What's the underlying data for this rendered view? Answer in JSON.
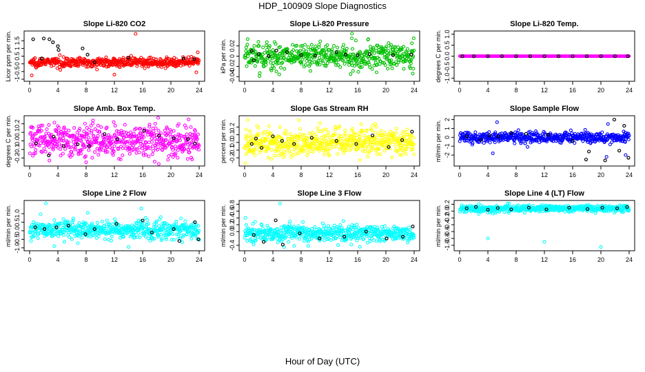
{
  "title": "HDP_100909  Slope Diagnostics",
  "xlabel": "Hour of Day (UTC)",
  "chart_data": [
    {
      "type": "scatter",
      "title": "Slope Li-820 CO2",
      "ylabel": "Licor ppm per min.",
      "xlim": [
        0,
        24
      ],
      "xticks": [
        0,
        4,
        8,
        12,
        16,
        20,
        24
      ],
      "ylim": [
        -1,
        2
      ],
      "yticks": [
        -1,
        -0.5,
        0,
        0.5,
        1,
        1.5
      ],
      "ytick_labels": [
        "-1",
        "-0.5",
        "0",
        "0.5",
        "1",
        "1.5"
      ],
      "color": "#ff0000",
      "n_points": 540,
      "center": 0.1,
      "spread": 0.14,
      "outliers": [
        [
          15,
          1.95
        ],
        [
          0.3,
          -0.75
        ],
        [
          23.8,
          0.75
        ],
        [
          23.6,
          -0.55
        ],
        [
          12,
          -0.7
        ]
      ],
      "black_points": [
        [
          0.5,
          1.6
        ],
        [
          2,
          1.65
        ],
        [
          2.8,
          1.6
        ],
        [
          3.3,
          1.4
        ],
        [
          4,
          1.15
        ],
        [
          7.5,
          1.0
        ],
        [
          8.2,
          0.6
        ],
        [
          1.7,
          0.35
        ],
        [
          4.1,
          0.9
        ],
        [
          9.2,
          0.1
        ],
        [
          14,
          0.4
        ],
        [
          21.8,
          0.35
        ],
        [
          23.3,
          0.3
        ]
      ]
    },
    {
      "type": "scatter",
      "title": "Slope Li-820 Pressure",
      "ylabel": "kPa per min.",
      "xlim": [
        0,
        24
      ],
      "xticks": [
        0,
        4,
        8,
        12,
        16,
        20,
        24
      ],
      "ylim": [
        -0.045,
        0.045
      ],
      "yticks": [
        -0.04,
        -0.02,
        0,
        0.02
      ],
      "ytick_labels": [
        "-0.04",
        "-0.02",
        "0",
        "0.02"
      ],
      "color": "#00c000",
      "n_points": 540,
      "center": 0,
      "spread": 0.013,
      "outliers": [
        [
          15.2,
          0.044
        ],
        [
          17.5,
          0.033
        ],
        [
          15,
          -0.035
        ],
        [
          23.8,
          -0.034
        ],
        [
          4.5,
          -0.03
        ]
      ],
      "black_points": [
        [
          1,
          0.01
        ],
        [
          1.3,
          -0.008
        ],
        [
          2,
          0.004
        ],
        [
          3.4,
          0
        ],
        [
          4.5,
          0.011
        ],
        [
          6,
          0.008
        ],
        [
          8,
          0.002
        ],
        [
          10,
          0.001
        ],
        [
          13,
          0.008
        ],
        [
          14.3,
          0.003
        ],
        [
          16,
          0.002
        ],
        [
          17.7,
          0.004
        ],
        [
          21,
          0.002
        ],
        [
          23.6,
          0.003
        ]
      ]
    },
    {
      "type": "scatter",
      "title": "Slope Li-820 Temp.",
      "ylabel": "degrees C per min.",
      "xlim": [
        0,
        24
      ],
      "xticks": [
        0,
        4,
        8,
        12,
        16,
        20,
        24
      ],
      "ylim": [
        -1.05,
        1.05
      ],
      "yticks": [
        -1,
        -0.5,
        0,
        0.5,
        1
      ],
      "ytick_labels": [
        "-1.0",
        "-0.5",
        "0.0",
        "0.5",
        "1.0"
      ],
      "color": "#ff00ff",
      "n_points": 260,
      "center": 0,
      "spread": 0.0,
      "outliers": [],
      "black_points": [
        [
          0.4,
          0
        ],
        [
          2,
          0
        ],
        [
          4,
          0
        ],
        [
          6,
          0
        ],
        [
          8,
          0
        ],
        [
          10,
          0
        ],
        [
          12,
          0
        ],
        [
          14,
          0
        ],
        [
          16,
          0
        ],
        [
          18,
          0
        ],
        [
          20,
          0
        ],
        [
          22,
          0
        ],
        [
          23.8,
          0
        ]
      ]
    },
    {
      "type": "scatter",
      "title": "Slope Amb. Box Temp.",
      "ylabel": "degrees C per min.",
      "xlim": [
        0,
        24
      ],
      "xticks": [
        0,
        4,
        8,
        12,
        16,
        20,
        24
      ],
      "ylim": [
        -0.27,
        0.27
      ],
      "yticks": [
        -0.2,
        -0.1,
        0,
        0.1,
        0.2
      ],
      "ytick_labels": [
        "-0.2",
        "-0.1",
        "0.0",
        "0.1",
        "0.2"
      ],
      "color": "#ff00ff",
      "n_points": 560,
      "center": 0,
      "spread": 0.09,
      "outliers": [
        [
          22.5,
          0.25
        ],
        [
          8,
          -0.25
        ],
        [
          2.8,
          -0.23
        ]
      ],
      "black_points": [
        [
          0.9,
          -0.03
        ],
        [
          2.7,
          -0.17
        ],
        [
          3.4,
          0.05
        ],
        [
          4.8,
          -0.06
        ],
        [
          6.8,
          -0.04
        ],
        [
          8.4,
          -0.06
        ],
        [
          10.6,
          0.08
        ],
        [
          12.4,
          0.02
        ],
        [
          16.2,
          0.12
        ],
        [
          18.3,
          0.06
        ],
        [
          20.4,
          0.03
        ],
        [
          22.4,
          0.02
        ],
        [
          23.4,
          -0.03
        ]
      ]
    },
    {
      "type": "scatter",
      "title": "Slope Gas Stream RH",
      "ylabel": "percent per min.",
      "xlim": [
        0,
        24
      ],
      "xticks": [
        0,
        4,
        8,
        12,
        16,
        20,
        24
      ],
      "ylim": [
        -0.28,
        0.32
      ],
      "yticks": [
        -0.2,
        -0.1,
        0,
        0.1,
        0.2
      ],
      "ytick_labels": [
        "-0.2",
        "-0.1",
        "0.0",
        "0.1",
        "0.2"
      ],
      "color": "#ffff00",
      "n_points": 560,
      "center": 0,
      "spread": 0.09,
      "outliers": [
        [
          0.4,
          0.29
        ],
        [
          0.1,
          -0.27
        ],
        [
          16.3,
          -0.23
        ]
      ],
      "black_points": [
        [
          1,
          -0.02
        ],
        [
          1.6,
          0.05
        ],
        [
          2.4,
          -0.07
        ],
        [
          4,
          0.08
        ],
        [
          5.3,
          0.02
        ],
        [
          7,
          -0.02
        ],
        [
          9.5,
          0.06
        ],
        [
          13,
          0.02
        ],
        [
          15.8,
          -0.02
        ],
        [
          18.1,
          0.09
        ],
        [
          20.4,
          -0.06
        ],
        [
          22.3,
          0.03
        ],
        [
          23.7,
          0.14
        ]
      ]
    },
    {
      "type": "scatter",
      "title": "Slope Sample Flow",
      "ylabel": "ml/min per min.",
      "xlim": [
        0,
        24
      ],
      "xticks": [
        0,
        4,
        8,
        12,
        16,
        20,
        24
      ],
      "ylim": [
        -3,
        2.2
      ],
      "yticks": [
        -2,
        -1,
        0,
        1,
        2
      ],
      "ytick_labels": [
        "-2",
        "-1",
        "0",
        "1",
        "2"
      ],
      "color": "#0000ff",
      "n_points": 520,
      "center": 0,
      "spread": 0.3,
      "outliers": [
        [
          5.3,
          1.7
        ],
        [
          4.7,
          -1.8
        ],
        [
          23.5,
          -2.0
        ],
        [
          21,
          1.5
        ],
        [
          20.8,
          -2.2
        ]
      ],
      "black_points": [
        [
          1,
          0.1
        ],
        [
          3,
          -0.3
        ],
        [
          4.2,
          0.2
        ],
        [
          5.5,
          0.1
        ],
        [
          7.3,
          0.5
        ],
        [
          9.4,
          0.4
        ],
        [
          12.5,
          0.3
        ],
        [
          16,
          -0.4
        ],
        [
          17.9,
          -2.5
        ],
        [
          18.3,
          -1.6
        ],
        [
          20.6,
          -2.6
        ],
        [
          21.9,
          2.0
        ],
        [
          22.6,
          -1.5
        ],
        [
          23.3,
          1.3
        ],
        [
          23.9,
          -2.3
        ]
      ]
    },
    {
      "type": "scatter",
      "title": "Slope Line 2 Flow",
      "ylabel": "ml/min per min.",
      "xlim": [
        0,
        24
      ],
      "xticks": [
        0,
        4,
        8,
        12,
        16,
        20,
        24
      ],
      "ylim": [
        -1.05,
        1.65
      ],
      "yticks": [
        -1,
        -0.5,
        0,
        0.5,
        1
      ],
      "ytick_labels": [
        "-1.0",
        "-0.5",
        "0.0",
        "0.5",
        "1.0"
      ],
      "color": "#00ffff",
      "n_points": 560,
      "center": 0.05,
      "spread": 0.25,
      "outliers": [
        [
          2.3,
          1.6
        ],
        [
          15.8,
          1.3
        ],
        [
          3.5,
          -0.9
        ],
        [
          14,
          -0.95
        ],
        [
          0.2,
          -0.6
        ]
      ],
      "black_points": [
        [
          0.8,
          0.2
        ],
        [
          2.1,
          0.1
        ],
        [
          3.8,
          0.2
        ],
        [
          5.5,
          0.3
        ],
        [
          7.9,
          -0.2
        ],
        [
          9.2,
          0.1
        ],
        [
          12.3,
          0.4
        ],
        [
          16,
          0.6
        ],
        [
          17.3,
          -0.1
        ],
        [
          20.4,
          0.1
        ],
        [
          21.2,
          -0.6
        ],
        [
          23.4,
          0.5
        ],
        [
          23.9,
          -0.5
        ]
      ]
    },
    {
      "type": "scatter",
      "title": "Slope Line 3 Flow",
      "ylabel": "ml/min per min.",
      "xlim": [
        0,
        24
      ],
      "xticks": [
        0,
        4,
        8,
        12,
        16,
        20,
        24
      ],
      "ylim": [
        -0.5,
        0.85
      ],
      "yticks": [
        -0.4,
        0,
        0.2,
        0.4,
        0.6,
        0.8
      ],
      "ytick_labels": [
        "-0.4",
        "0.0",
        "0.2",
        "0.4",
        "0.6",
        "0.8"
      ],
      "color": "#00ffff",
      "n_points": 560,
      "center": -0.05,
      "spread": 0.12,
      "outliers": [
        [
          5,
          0.82
        ],
        [
          0.1,
          0.4
        ],
        [
          5.6,
          -0.45
        ],
        [
          9,
          -0.42
        ]
      ],
      "black_points": [
        [
          1.3,
          -0.1
        ],
        [
          2.7,
          -0.3
        ],
        [
          4.4,
          0.33
        ],
        [
          5.4,
          -0.38
        ],
        [
          7.8,
          -0.05
        ],
        [
          10.6,
          -0.2
        ],
        [
          14.1,
          -0.15
        ],
        [
          17.2,
          0
        ],
        [
          20.1,
          -0.2
        ],
        [
          22.4,
          -0.15
        ],
        [
          23.8,
          0.15
        ]
      ]
    },
    {
      "type": "scatter",
      "title": "Slope Line 4 (LT) Flow",
      "ylabel": "ml/min per min.",
      "xlim": [
        0,
        24
      ],
      "xticks": [
        0,
        4,
        8,
        12,
        16,
        20,
        24
      ],
      "ylim": [
        -1.1,
        0.25
      ],
      "yticks": [
        -1,
        -0.8,
        -0.6,
        -0.4,
        -0.2,
        0,
        0.2
      ],
      "ytick_labels": [
        "-1.0",
        "-0.8",
        "-0.6",
        "-0.4",
        "-0.2",
        "0.0",
        "0.2"
      ],
      "color": "#00ffff",
      "n_points": 540,
      "center": 0.07,
      "spread": 0.05,
      "outliers": [
        [
          4,
          -0.8
        ],
        [
          12,
          -0.9
        ],
        [
          20,
          -1.05
        ]
      ],
      "black_points": [
        [
          1,
          0.08
        ],
        [
          2.3,
          0.12
        ],
        [
          4,
          0.04
        ],
        [
          5.4,
          0.09
        ],
        [
          7.3,
          0.05
        ],
        [
          9.8,
          0.1
        ],
        [
          12.3,
          0.05
        ],
        [
          15.5,
          0.1
        ],
        [
          18.1,
          0.06
        ],
        [
          20.2,
          0.1
        ],
        [
          22.3,
          0.08
        ],
        [
          23.7,
          0.12
        ]
      ]
    }
  ]
}
